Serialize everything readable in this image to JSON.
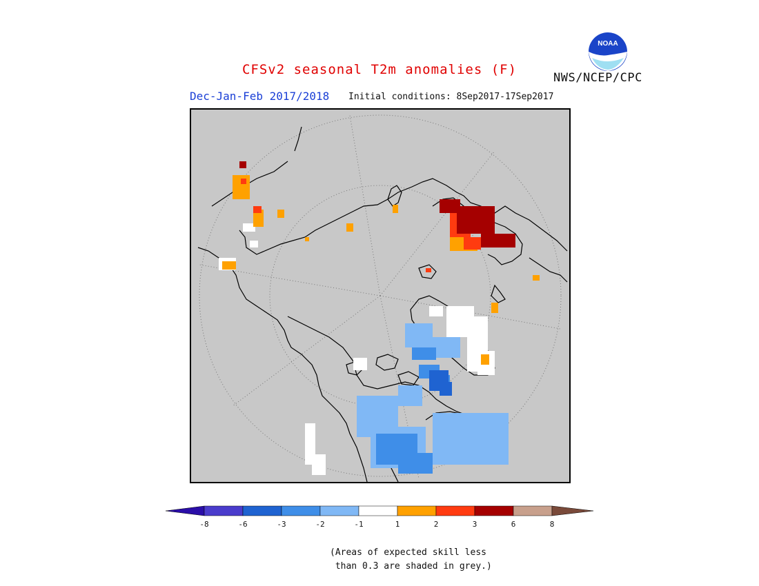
{
  "header": {
    "title": "CFSv2 seasonal T2m anomalies (F)",
    "season": "Dec-Jan-Feb 2017/2018",
    "initial_conditions": "Initial conditions: 8Sep2017-17Sep2017",
    "agency": "NWS/NCEP/CPC",
    "logo_text": "NOAA"
  },
  "legend": {
    "tick_labels": [
      "-8",
      "-6",
      "-3",
      "-2",
      "-1",
      "1",
      "2",
      "3",
      "6",
      "8"
    ],
    "colors": [
      "#2a0ea8",
      "#4a3ccc",
      "#1f63d1",
      "#3f8ee8",
      "#80b8f5",
      "#ffffff",
      "#ffa100",
      "#ff3b10",
      "#a50000",
      "#c8a08c",
      "#7a4a3a"
    ]
  },
  "note": "(Areas of expected skill less\n than 0.3 are shaded in grey.)",
  "map": {
    "projection": "polar-stereographic",
    "background_color": "#c8c8c8"
  }
}
